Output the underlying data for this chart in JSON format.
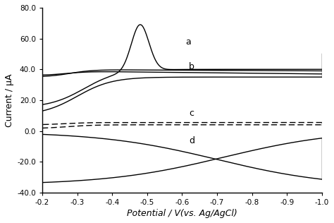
{
  "xlim": [
    -0.2,
    -1.0
  ],
  "ylim": [
    -40.0,
    80.0
  ],
  "xlabel": "Potential / V(vs. Ag/AgCl)",
  "ylabel": "Current / μA",
  "xticks": [
    -0.2,
    -0.3,
    -0.4,
    -0.5,
    -0.6,
    -0.7,
    -0.8,
    -0.9,
    -1.0
  ],
  "yticks": [
    -40.0,
    -20.0,
    0.0,
    20.0,
    40.0,
    60.0,
    80.0
  ],
  "background_color": "#ffffff",
  "curve_color": "#000000"
}
